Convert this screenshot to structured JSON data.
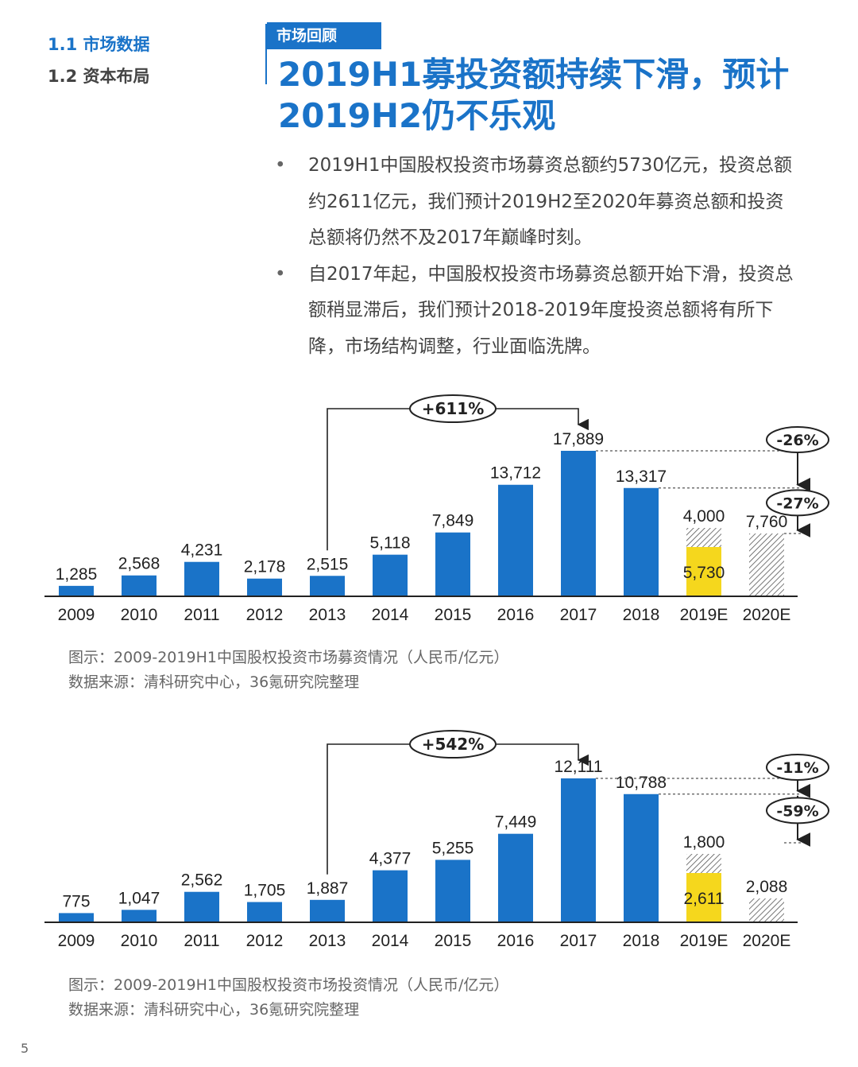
{
  "nav": {
    "item1": "1.1 市场数据",
    "item2": "1.2 资本布局"
  },
  "tag": "市场回顾",
  "title": "2019H1募投资额持续下滑，预计2019H2仍不乐观",
  "bullets": [
    "2019H1中国股权投资市场募资总额约5730亿元，投资总额约2611亿元，我们预计2019H2至2020年募资总额和投资总额将仍然不及2017年巅峰时刻。",
    "自2017年起，中国股权投资市场募资总额开始下滑，投资总额稍显滞后，我们预计2018-2019年度投资总额将有所下降，市场结构调整，行业面临洗牌。"
  ],
  "colors": {
    "bar": "#1a73c8",
    "highlight": "#f5d71d",
    "title": "#1a73c8"
  },
  "chart_data": [
    {
      "type": "bar",
      "categories": [
        "2009",
        "2010",
        "2011",
        "2012",
        "2013",
        "2014",
        "2015",
        "2016",
        "2017",
        "2018",
        "2019E",
        "2020E"
      ],
      "values": [
        1285,
        2568,
        4231,
        2178,
        2515,
        5118,
        7849,
        13712,
        17889,
        13317,
        null,
        null
      ],
      "labels": [
        "1,285",
        "2,568",
        "4,231",
        "2,178",
        "2,515",
        "5,118",
        "7,849",
        "13,712",
        "17,889",
        "13,317",
        "",
        ""
      ],
      "estimate_2019E": {
        "h1": 5730,
        "h1_label": "5,730",
        "h2": 4000,
        "h2_label": "4,000"
      },
      "estimate_2020E": {
        "value": 7760,
        "label": "7,760"
      },
      "growth_callout": {
        "text": "+611%",
        "from": "2013",
        "to": "2017"
      },
      "change_callouts": [
        {
          "text": "-26%"
        },
        {
          "text": "-27%"
        }
      ],
      "ylim": [
        0,
        17889
      ]
    },
    {
      "type": "bar",
      "categories": [
        "2009",
        "2010",
        "2011",
        "2012",
        "2013",
        "2014",
        "2015",
        "2016",
        "2017",
        "2018",
        "2019E",
        "2020E"
      ],
      "values": [
        775,
        1047,
        2562,
        1705,
        1887,
        4377,
        5255,
        7449,
        12111,
        10788,
        null,
        null
      ],
      "labels": [
        "775",
        "1,047",
        "2,562",
        "1,705",
        "1,887",
        "4,377",
        "5,255",
        "7,449",
        "12,111",
        "10,788",
        "",
        ""
      ],
      "estimate_2019E": {
        "h1": 2611,
        "h1_label": "2,611",
        "h2": 1800,
        "h2_label": "1,800"
      },
      "estimate_2020E": {
        "value": 2088,
        "label": "2,088"
      },
      "growth_callout": {
        "text": "+542%",
        "from": "2013",
        "to": "2017"
      },
      "change_callouts": [
        {
          "text": "-11%"
        },
        {
          "text": "-59%"
        }
      ],
      "ylim": [
        0,
        12111
      ]
    }
  ],
  "captions": [
    {
      "line1": "图示：2009-2019H1中国股权投资市场募资情况（人民币/亿元）",
      "line2": "数据来源：清科研究中心，36氪研究院整理"
    },
    {
      "line1": "图示：2009-2019H1中国股权投资市场投资情况（人民币/亿元）",
      "line2": "数据来源：清科研究中心，36氪研究院整理"
    }
  ],
  "page_number": "5"
}
